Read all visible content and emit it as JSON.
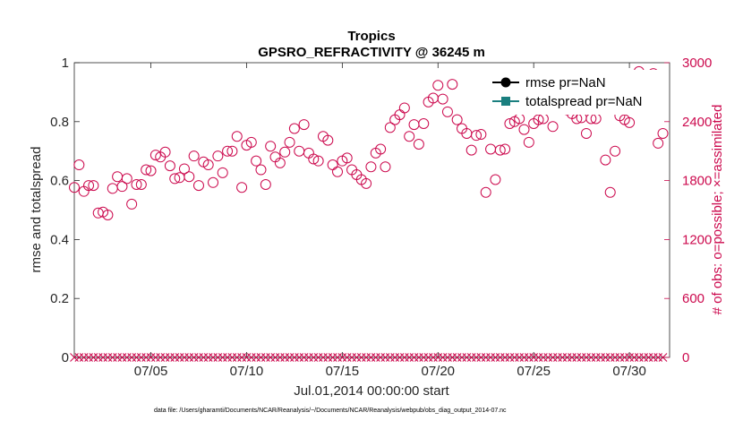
{
  "colors": {
    "obs": "#cc0a4e",
    "axis": "#262626",
    "rmse": "#000000",
    "spread": "#1a7f7f",
    "background": "#ffffff"
  },
  "chart_data": {
    "type": "scatter",
    "title": "Tropics",
    "subtitle": "GPSRO_REFRACTIVITY @ 36245 m",
    "xlabel": "Jul.01,2014 00:00:00 start",
    "ylabel": "rmse and totalspread",
    "y2label": "# of obs: o=possible; ×=assimilated",
    "xlim": [
      1.0,
      32.1
    ],
    "ylim": [
      0,
      1
    ],
    "y2lim": [
      0,
      3000
    ],
    "x_ticks": [
      {
        "value": 5,
        "label": "07/05"
      },
      {
        "value": 10,
        "label": "07/10"
      },
      {
        "value": 15,
        "label": "07/15"
      },
      {
        "value": 20,
        "label": "07/20"
      },
      {
        "value": 25,
        "label": "07/25"
      },
      {
        "value": 30,
        "label": "07/30"
      }
    ],
    "y_ticks": [
      {
        "value": 0,
        "label": "0"
      },
      {
        "value": 0.2,
        "label": "0.2"
      },
      {
        "value": 0.4,
        "label": "0.4"
      },
      {
        "value": 0.6,
        "label": "0.6"
      },
      {
        "value": 0.8,
        "label": "0.8"
      },
      {
        "value": 1,
        "label": "1"
      }
    ],
    "y2_ticks": [
      {
        "value": 0,
        "label": "0"
      },
      {
        "value": 600,
        "label": "600"
      },
      {
        "value": 1200,
        "label": "1200"
      },
      {
        "value": 1800,
        "label": "1800"
      },
      {
        "value": 2400,
        "label": "2400"
      },
      {
        "value": 3000,
        "label": "3000"
      }
    ],
    "legend": {
      "position": "top-right",
      "entries": [
        {
          "label": "rmse pr=NaN",
          "marker": "circle"
        },
        {
          "label": "totalspread pr=NaN",
          "marker": "square"
        }
      ]
    },
    "series": [
      {
        "name": "rmse pr=NaN",
        "x": [],
        "y": []
      },
      {
        "name": "totalspread pr=NaN",
        "x": [],
        "y": []
      },
      {
        "name": "possible obs",
        "axis": "right",
        "marker": "circle",
        "x": [
          1.0,
          1.25,
          1.5,
          1.75,
          2.0,
          2.25,
          2.5,
          2.75,
          3.0,
          3.25,
          3.5,
          3.75,
          4.0,
          4.25,
          4.5,
          4.75,
          5.0,
          5.25,
          5.5,
          5.75,
          6.0,
          6.25,
          6.5,
          6.75,
          7.0,
          7.25,
          7.5,
          7.75,
          8.0,
          8.25,
          8.5,
          8.75,
          9.0,
          9.25,
          9.5,
          9.75,
          10.0,
          10.25,
          10.5,
          10.75,
          11.0,
          11.25,
          11.5,
          11.75,
          12.0,
          12.25,
          12.5,
          12.75,
          13.0,
          13.25,
          13.5,
          13.75,
          14.0,
          14.25,
          14.5,
          14.75,
          15.0,
          15.25,
          15.5,
          15.75,
          16.0,
          16.25,
          16.5,
          16.75,
          17.0,
          17.25,
          17.5,
          17.75,
          18.0,
          18.25,
          18.5,
          18.75,
          19.0,
          19.25,
          19.5,
          19.75,
          20.0,
          20.25,
          20.5,
          20.75,
          21.0,
          21.25,
          21.5,
          21.75,
          22.0,
          22.25,
          22.5,
          22.75,
          23.0,
          23.25,
          23.5,
          23.75,
          24.0,
          24.25,
          24.5,
          24.75,
          25.0,
          25.25,
          25.5,
          25.75,
          26.0,
          26.25,
          26.5,
          26.75,
          27.0,
          27.25,
          27.5,
          27.75,
          28.0,
          28.25,
          28.5,
          28.75,
          29.0,
          29.25,
          29.5,
          29.75,
          30.0,
          30.25,
          30.5,
          30.75,
          31.0,
          31.25,
          31.5,
          31.75
        ],
        "y": [
          1730,
          1960,
          1690,
          1750,
          1750,
          1470,
          1480,
          1450,
          1720,
          1840,
          1740,
          1820,
          1560,
          1760,
          1760,
          1910,
          1900,
          2060,
          2040,
          2090,
          1950,
          1820,
          1830,
          1920,
          1840,
          2050,
          1750,
          1990,
          1960,
          1780,
          2050,
          1880,
          2100,
          2100,
          2250,
          1730,
          2160,
          2190,
          2000,
          1910,
          1760,
          2150,
          2040,
          1980,
          2090,
          2190,
          2330,
          2100,
          2370,
          2080,
          2020,
          2000,
          2250,
          2210,
          1960,
          1890,
          2000,
          2030,
          1910,
          1860,
          1810,
          1770,
          1940,
          2080,
          2120,
          1940,
          2340,
          2420,
          2470,
          2540,
          2250,
          2370,
          2170,
          2380,
          2600,
          2640,
          2770,
          2630,
          2500,
          2780,
          2420,
          2330,
          2280,
          2110,
          2260,
          2270,
          1680,
          2120,
          1810,
          2110,
          2120,
          2380,
          2400,
          2430,
          2320,
          2190,
          2380,
          2420,
          2430,
          2680,
          2350,
          2580,
          2620,
          2520,
          2480,
          2430,
          2440,
          2280,
          2430,
          2430,
          2770,
          2010,
          1680,
          2100,
          2460,
          2420,
          2390,
          2680,
          2910,
          2830,
          2690,
          2890,
          2180,
          2280
        ]
      },
      {
        "name": "assimilated obs",
        "axis": "right",
        "marker": "x",
        "x": [
          1.0,
          1.25,
          1.5,
          1.75,
          2.0,
          2.25,
          2.5,
          2.75,
          3.0,
          3.25,
          3.5,
          3.75,
          4.0,
          4.25,
          4.5,
          4.75,
          5.0,
          5.25,
          5.5,
          5.75,
          6.0,
          6.25,
          6.5,
          6.75,
          7.0,
          7.25,
          7.5,
          7.75,
          8.0,
          8.25,
          8.5,
          8.75,
          9.0,
          9.25,
          9.5,
          9.75,
          10.0,
          10.25,
          10.5,
          10.75,
          11.0,
          11.25,
          11.5,
          11.75,
          12.0,
          12.25,
          12.5,
          12.75,
          13.0,
          13.25,
          13.5,
          13.75,
          14.0,
          14.25,
          14.5,
          14.75,
          15.0,
          15.25,
          15.5,
          15.75,
          16.0,
          16.25,
          16.5,
          16.75,
          17.0,
          17.25,
          17.5,
          17.75,
          18.0,
          18.25,
          18.5,
          18.75,
          19.0,
          19.25,
          19.5,
          19.75,
          20.0,
          20.25,
          20.5,
          20.75,
          21.0,
          21.25,
          21.5,
          21.75,
          22.0,
          22.25,
          22.5,
          22.75,
          23.0,
          23.25,
          23.5,
          23.75,
          24.0,
          24.25,
          24.5,
          24.75,
          25.0,
          25.25,
          25.5,
          25.75,
          26.0,
          26.25,
          26.5,
          26.75,
          27.0,
          27.25,
          27.5,
          27.75,
          28.0,
          28.25,
          28.5,
          28.75,
          29.0,
          29.25,
          29.5,
          29.75,
          30.0,
          30.25,
          30.5,
          30.75,
          31.0,
          31.25,
          31.5,
          31.75
        ],
        "y": [
          0,
          0,
          0,
          0,
          0,
          0,
          0,
          0,
          0,
          0,
          0,
          0,
          0,
          0,
          0,
          0,
          0,
          0,
          0,
          0,
          0,
          0,
          0,
          0,
          0,
          0,
          0,
          0,
          0,
          0,
          0,
          0,
          0,
          0,
          0,
          0,
          0,
          0,
          0,
          0,
          0,
          0,
          0,
          0,
          0,
          0,
          0,
          0,
          0,
          0,
          0,
          0,
          0,
          0,
          0,
          0,
          0,
          0,
          0,
          0,
          0,
          0,
          0,
          0,
          0,
          0,
          0,
          0,
          0,
          0,
          0,
          0,
          0,
          0,
          0,
          0,
          0,
          0,
          0,
          0,
          0,
          0,
          0,
          0,
          0,
          0,
          0,
          0,
          0,
          0,
          0,
          0,
          0,
          0,
          0,
          0,
          0,
          0,
          0,
          0,
          0,
          0,
          0,
          0,
          0,
          0,
          0,
          0,
          0,
          0,
          0,
          0,
          0,
          0,
          0,
          0,
          0,
          0,
          0,
          0,
          0,
          0,
          0,
          0
        ]
      }
    ]
  },
  "footnote": "data file: /Users/gharamti/Documents/NCAR/Reanalysis/~/Documents/NCAR/Reanalysis/webpub/obs_diag_output_2014-07.nc"
}
